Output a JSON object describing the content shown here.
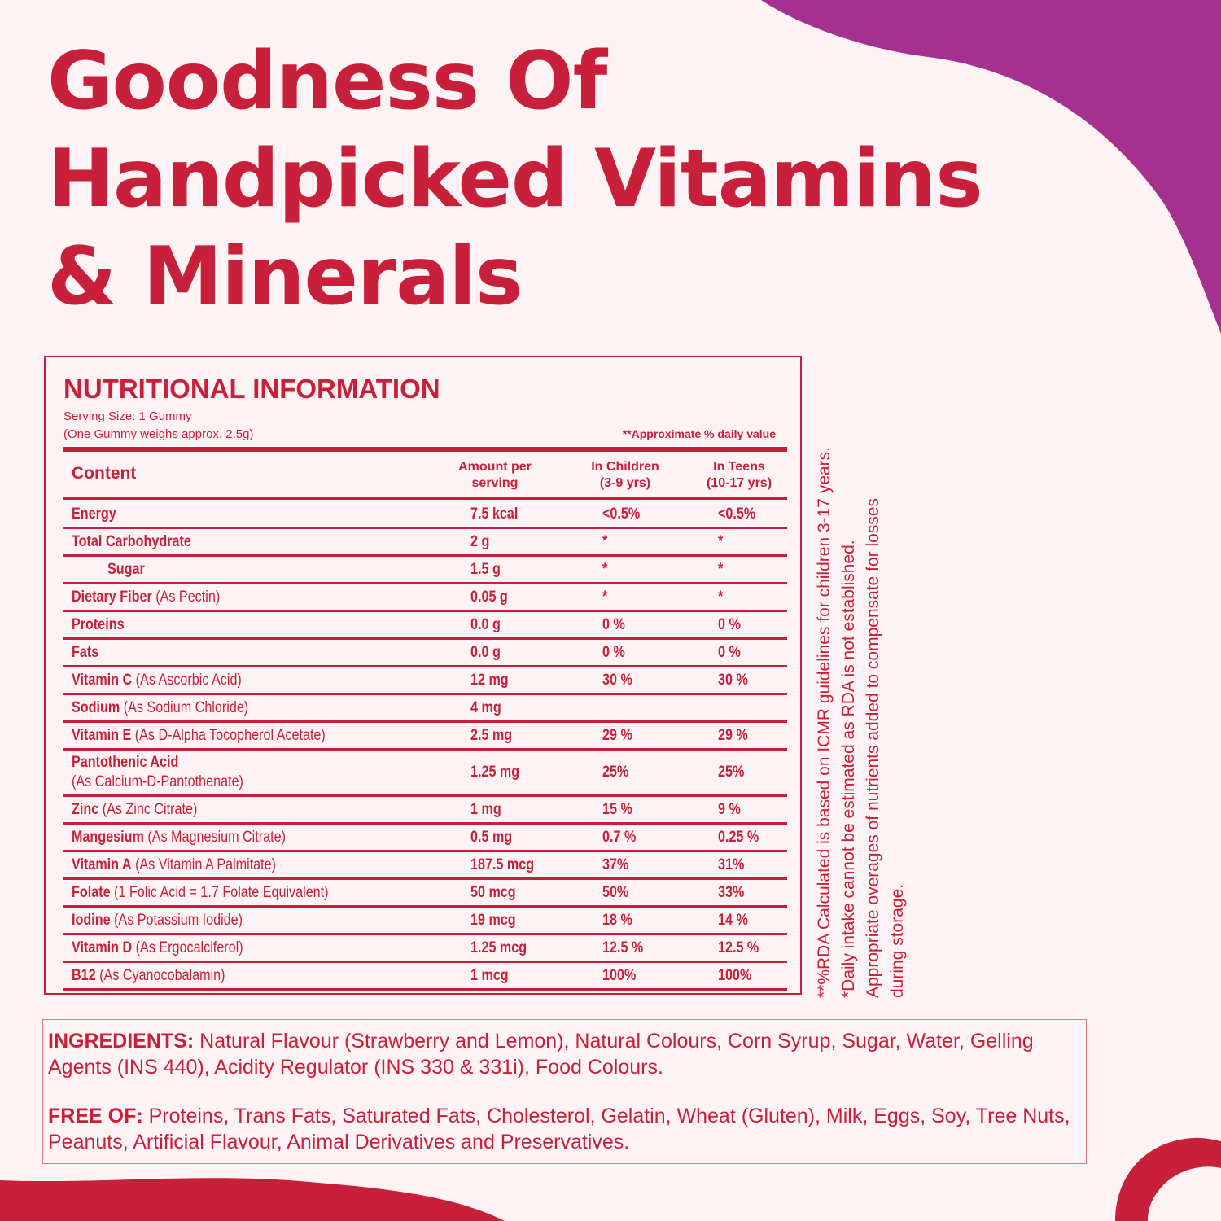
{
  "headline": [
    "Goodness Of",
    "Handpicked Vitamins",
    "& Minerals"
  ],
  "nutrition": {
    "title": "NUTRITIONAL INFORMATION",
    "serving_size": "Serving Size: 1 Gummy",
    "serving_weight": "(One Gummy weighs approx. 2.5g)",
    "approx_note": "**Approximate % daily value",
    "headers": {
      "content": "Content",
      "amount_1": "Amount per",
      "amount_2": "serving",
      "children_1": "In Children",
      "children_2": "(3-9 yrs)",
      "teens_1": "In Teens",
      "teens_2": "(10-17 yrs)"
    },
    "rows": [
      {
        "name": "Energy",
        "detail": "",
        "amount": "7.5 kcal",
        "children": "<0.5%",
        "teens": "<0.5%"
      },
      {
        "name": "Total Carbohydrate",
        "detail": "",
        "amount": "2 g",
        "children": "*",
        "teens": "*"
      },
      {
        "name": "Sugar",
        "detail": "",
        "amount": "1.5 g",
        "children": "*",
        "teens": "*"
      },
      {
        "name": "Dietary Fiber",
        "detail": " (As Pectin)",
        "amount": "0.05 g",
        "children": "*",
        "teens": "*"
      },
      {
        "name": "Proteins",
        "detail": "",
        "amount": "0.0 g",
        "children": "0 %",
        "teens": "0 %"
      },
      {
        "name": "Fats",
        "detail": "",
        "amount": "0.0 g",
        "children": "0 %",
        "teens": "0 %"
      },
      {
        "name": "Vitamin C",
        "detail": " (As Ascorbic Acid)",
        "amount": "12 mg",
        "children": "30 %",
        "teens": "30 %"
      },
      {
        "name": "Sodium",
        "detail": " (As Sodium Chloride)",
        "amount": "4 mg",
        "children": "",
        "teens": ""
      },
      {
        "name": "Vitamin E",
        "detail": " (As D-Alpha Tocopherol Acetate)",
        "amount": "2.5 mg",
        "children": "29 %",
        "teens": "29 %"
      },
      {
        "name": "Pantothenic Acid",
        "detail": "(As Calcium-D-Pantothenate)",
        "amount": "1.25 mg",
        "children": "25%",
        "teens": "25%"
      },
      {
        "name": "Zinc",
        "detail": " (As Zinc Citrate)",
        "amount": "1 mg",
        "children": "15 %",
        "teens": "9 %"
      },
      {
        "name": "Mangesium",
        "detail": " (As Magnesium Citrate)",
        "amount": "0.5 mg",
        "children": "0.7 %",
        "teens": "0.25 %"
      },
      {
        "name": "Vitamin A",
        "detail": " (As Vitamin A Palmitate)",
        "amount": "187.5 mcg",
        "children": "37%",
        "teens": "31%"
      },
      {
        "name": "Folate",
        "detail": " (1 Folic Acid = 1.7 Folate Equivalent)",
        "amount": "50 mcg",
        "children": "50%",
        "teens": "33%"
      },
      {
        "name": "Iodine",
        "detail": " (As Potassium Iodide)",
        "amount": "19 mcg",
        "children": "18 %",
        "teens": "14 %"
      },
      {
        "name": "Vitamin D",
        "detail": " (As Ergocalciferol)",
        "amount": "1.25 mcg",
        "children": "12.5 %",
        "teens": "12.5 %"
      },
      {
        "name": "B12",
        "detail": " (As Cyanocobalamin)",
        "amount": "1 mcg",
        "children": "100%",
        "teens": "100%"
      }
    ]
  },
  "side_notes": [
    "**%RDA Calculated is based on ICMR guidelines for children 3-17 years.",
    "*Daily intake cannot be estimated as RDA is not established.",
    "Appropriate overages of nutrients added to compensate for losses",
    "during storage."
  ],
  "ingredients": {
    "label": "INGREDIENTS:",
    "text": " Natural Flavour (Strawberry and Lemon), Natural Colours, Corn Syrup, Sugar, Water, Gelling Agents (INS 440), Acidity Regulator (INS 330 & 331i), Food Colours."
  },
  "free_of": {
    "label": "FREE OF:",
    "text": " Proteins, Trans Fats, Saturated Fats, Cholesterol, Gelatin, Wheat (Gluten), Milk, Eggs, Soy, Tree Nuts, Peanuts, Artificial Flavour, Animal Derivatives and Preservatives."
  },
  "colors": {
    "primary_red": "#c8203a",
    "purple_blob": "#a5308f",
    "background": "#fdf3f4",
    "bottom_blob": "#c8203a"
  }
}
